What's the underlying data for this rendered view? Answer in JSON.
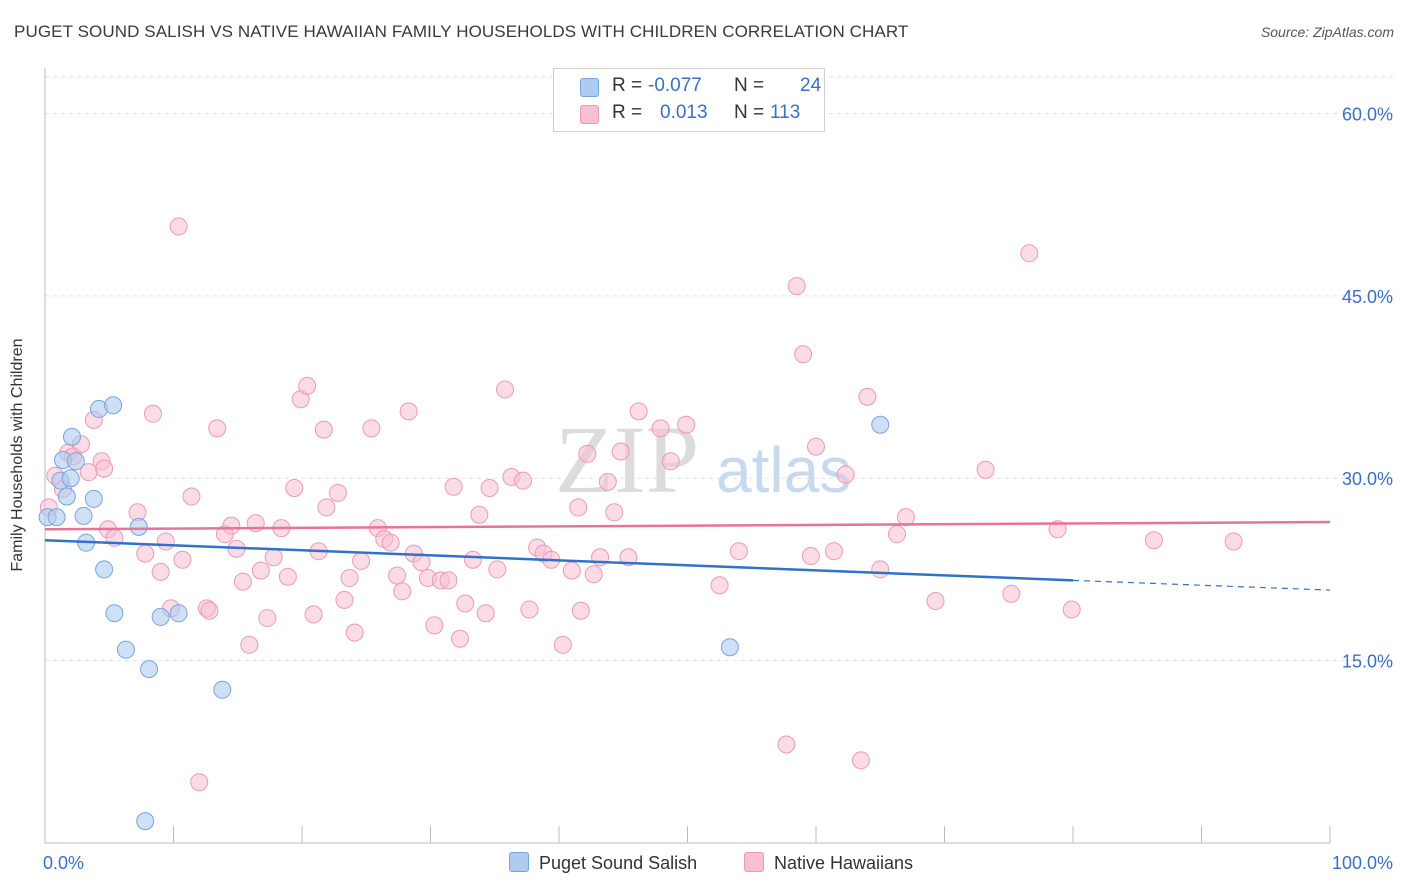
{
  "header": {
    "title": "PUGET SOUND SALISH VS NATIVE HAWAIIAN FAMILY HOUSEHOLDS WITH CHILDREN CORRELATION CHART",
    "source": "Source: ZipAtlas.com"
  },
  "watermark": {
    "zip": "ZIP",
    "atlas": "atlas"
  },
  "legend": {
    "rows": [
      {
        "r_label": "R =",
        "r_value": "-0.077",
        "n_label": "N =",
        "n_value": "24",
        "color": "#aecbf0"
      },
      {
        "r_label": "R =",
        "r_value": "0.013",
        "n_label": "N =",
        "n_value": "113",
        "color": "#f7b8cc"
      }
    ]
  },
  "bottom_legend": {
    "series1": "Puget Sound Salish",
    "series2": "Native Hawaiians"
  },
  "colors": {
    "blue_fill": "#aecbf0",
    "blue_stroke": "#7aa3dc",
    "blue_line": "#2f72c9",
    "pink_fill": "#f7c0d1",
    "pink_stroke": "#ea9ab3",
    "pink_line": "#e8739a",
    "tick_text": "#3b6fc4"
  },
  "chart_data": {
    "type": "scatter",
    "title": "PUGET SOUND SALISH VS NATIVE HAWAIIAN FAMILY HOUSEHOLDS WITH CHILDREN CORRELATION CHART",
    "xlabel": "",
    "ylabel": "Family Households with Children",
    "xlim": [
      0,
      100
    ],
    "ylim": [
      0,
      63
    ],
    "x_tick_labels": [
      "0.0%",
      "100.0%"
    ],
    "y_ticks": [
      15,
      30,
      45,
      60
    ],
    "y_tick_labels": [
      "15.0%",
      "30.0%",
      "45.0%",
      "60.0%"
    ],
    "series": [
      {
        "name": "Puget Sound Salish",
        "r": -0.077,
        "n": 24,
        "trend": {
          "x0": 0,
          "y0": 24.9,
          "x1": 80,
          "y1": 21.6,
          "dash_to_x": 100,
          "dash_to_y": 20.8
        },
        "points": [
          [
            0.2,
            26.8
          ],
          [
            0.9,
            26.8
          ],
          [
            1.2,
            29.8
          ],
          [
            1.4,
            31.5
          ],
          [
            1.7,
            28.5
          ],
          [
            2.0,
            30.0
          ],
          [
            2.1,
            33.4
          ],
          [
            2.4,
            31.4
          ],
          [
            3.0,
            26.9
          ],
          [
            3.2,
            24.7
          ],
          [
            3.8,
            28.3
          ],
          [
            4.2,
            35.7
          ],
          [
            4.6,
            22.5
          ],
          [
            5.3,
            36.0
          ],
          [
            5.4,
            18.9
          ],
          [
            6.3,
            15.9
          ],
          [
            7.3,
            26.0
          ],
          [
            7.8,
            1.8
          ],
          [
            8.1,
            14.3
          ],
          [
            9.0,
            18.6
          ],
          [
            10.4,
            18.9
          ],
          [
            13.8,
            12.6
          ],
          [
            53.3,
            16.1
          ],
          [
            65.0,
            34.4
          ]
        ]
      },
      {
        "name": "Native Hawaiians",
        "r": 0.013,
        "n": 113,
        "trend": {
          "x0": 0,
          "y0": 25.8,
          "x1": 100,
          "y1": 26.4
        },
        "points": [
          [
            0.3,
            27.6
          ],
          [
            0.8,
            30.2
          ],
          [
            1.4,
            29.1
          ],
          [
            1.8,
            32.1
          ],
          [
            2.2,
            31.8
          ],
          [
            2.8,
            32.8
          ],
          [
            3.4,
            30.5
          ],
          [
            3.8,
            34.8
          ],
          [
            4.4,
            31.4
          ],
          [
            4.6,
            30.8
          ],
          [
            4.9,
            25.8
          ],
          [
            5.4,
            25.1
          ],
          [
            7.2,
            27.2
          ],
          [
            7.8,
            23.8
          ],
          [
            8.4,
            35.3
          ],
          [
            9.0,
            22.3
          ],
          [
            9.4,
            24.8
          ],
          [
            9.8,
            19.3
          ],
          [
            10.4,
            50.7
          ],
          [
            10.7,
            23.3
          ],
          [
            11.4,
            28.5
          ],
          [
            12.0,
            5.0
          ],
          [
            12.6,
            19.3
          ],
          [
            12.8,
            19.1
          ],
          [
            13.4,
            34.1
          ],
          [
            14.0,
            25.4
          ],
          [
            14.5,
            26.1
          ],
          [
            14.9,
            24.2
          ],
          [
            15.4,
            21.5
          ],
          [
            15.9,
            16.3
          ],
          [
            16.4,
            26.3
          ],
          [
            16.8,
            22.4
          ],
          [
            17.3,
            18.5
          ],
          [
            17.8,
            23.5
          ],
          [
            18.4,
            25.9
          ],
          [
            18.9,
            21.9
          ],
          [
            19.4,
            29.2
          ],
          [
            19.9,
            36.5
          ],
          [
            20.4,
            37.6
          ],
          [
            20.9,
            18.8
          ],
          [
            21.3,
            24.0
          ],
          [
            21.7,
            34.0
          ],
          [
            21.9,
            27.6
          ],
          [
            22.8,
            28.8
          ],
          [
            23.3,
            20.0
          ],
          [
            23.7,
            21.8
          ],
          [
            24.1,
            17.3
          ],
          [
            24.6,
            23.2
          ],
          [
            25.4,
            34.1
          ],
          [
            25.9,
            25.9
          ],
          [
            26.4,
            25.0
          ],
          [
            26.9,
            24.7
          ],
          [
            27.4,
            22.0
          ],
          [
            27.8,
            20.7
          ],
          [
            28.3,
            35.5
          ],
          [
            28.7,
            23.8
          ],
          [
            29.3,
            23.1
          ],
          [
            29.8,
            21.8
          ],
          [
            30.3,
            17.9
          ],
          [
            30.8,
            21.6
          ],
          [
            31.4,
            21.6
          ],
          [
            31.8,
            29.3
          ],
          [
            32.3,
            16.8
          ],
          [
            32.7,
            19.7
          ],
          [
            33.3,
            23.3
          ],
          [
            33.8,
            27.0
          ],
          [
            34.3,
            18.9
          ],
          [
            34.6,
            29.2
          ],
          [
            35.2,
            22.5
          ],
          [
            35.8,
            37.3
          ],
          [
            36.3,
            30.1
          ],
          [
            37.2,
            29.8
          ],
          [
            37.7,
            19.2
          ],
          [
            38.3,
            24.3
          ],
          [
            38.8,
            23.8
          ],
          [
            39.4,
            23.3
          ],
          [
            40.3,
            16.3
          ],
          [
            41.0,
            22.4
          ],
          [
            41.5,
            27.6
          ],
          [
            41.7,
            19.1
          ],
          [
            42.2,
            32.0
          ],
          [
            42.7,
            22.1
          ],
          [
            43.2,
            23.5
          ],
          [
            43.8,
            29.7
          ],
          [
            44.3,
            27.2
          ],
          [
            44.8,
            32.2
          ],
          [
            45.4,
            23.5
          ],
          [
            46.2,
            35.5
          ],
          [
            47.9,
            34.1
          ],
          [
            48.7,
            31.4
          ],
          [
            49.9,
            34.4
          ],
          [
            52.5,
            21.2
          ],
          [
            54.0,
            24.0
          ],
          [
            57.7,
            8.1
          ],
          [
            58.5,
            45.8
          ],
          [
            59.0,
            40.2
          ],
          [
            59.6,
            23.6
          ],
          [
            60.0,
            32.6
          ],
          [
            61.4,
            24.0
          ],
          [
            62.3,
            30.3
          ],
          [
            63.5,
            6.8
          ],
          [
            64.0,
            36.7
          ],
          [
            65.0,
            22.5
          ],
          [
            66.3,
            25.4
          ],
          [
            67.0,
            26.8
          ],
          [
            69.3,
            19.9
          ],
          [
            73.2,
            30.7
          ],
          [
            75.2,
            20.5
          ],
          [
            76.6,
            48.5
          ],
          [
            78.8,
            25.8
          ],
          [
            79.9,
            19.2
          ],
          [
            86.3,
            24.9
          ],
          [
            92.5,
            24.8
          ]
        ]
      }
    ]
  }
}
